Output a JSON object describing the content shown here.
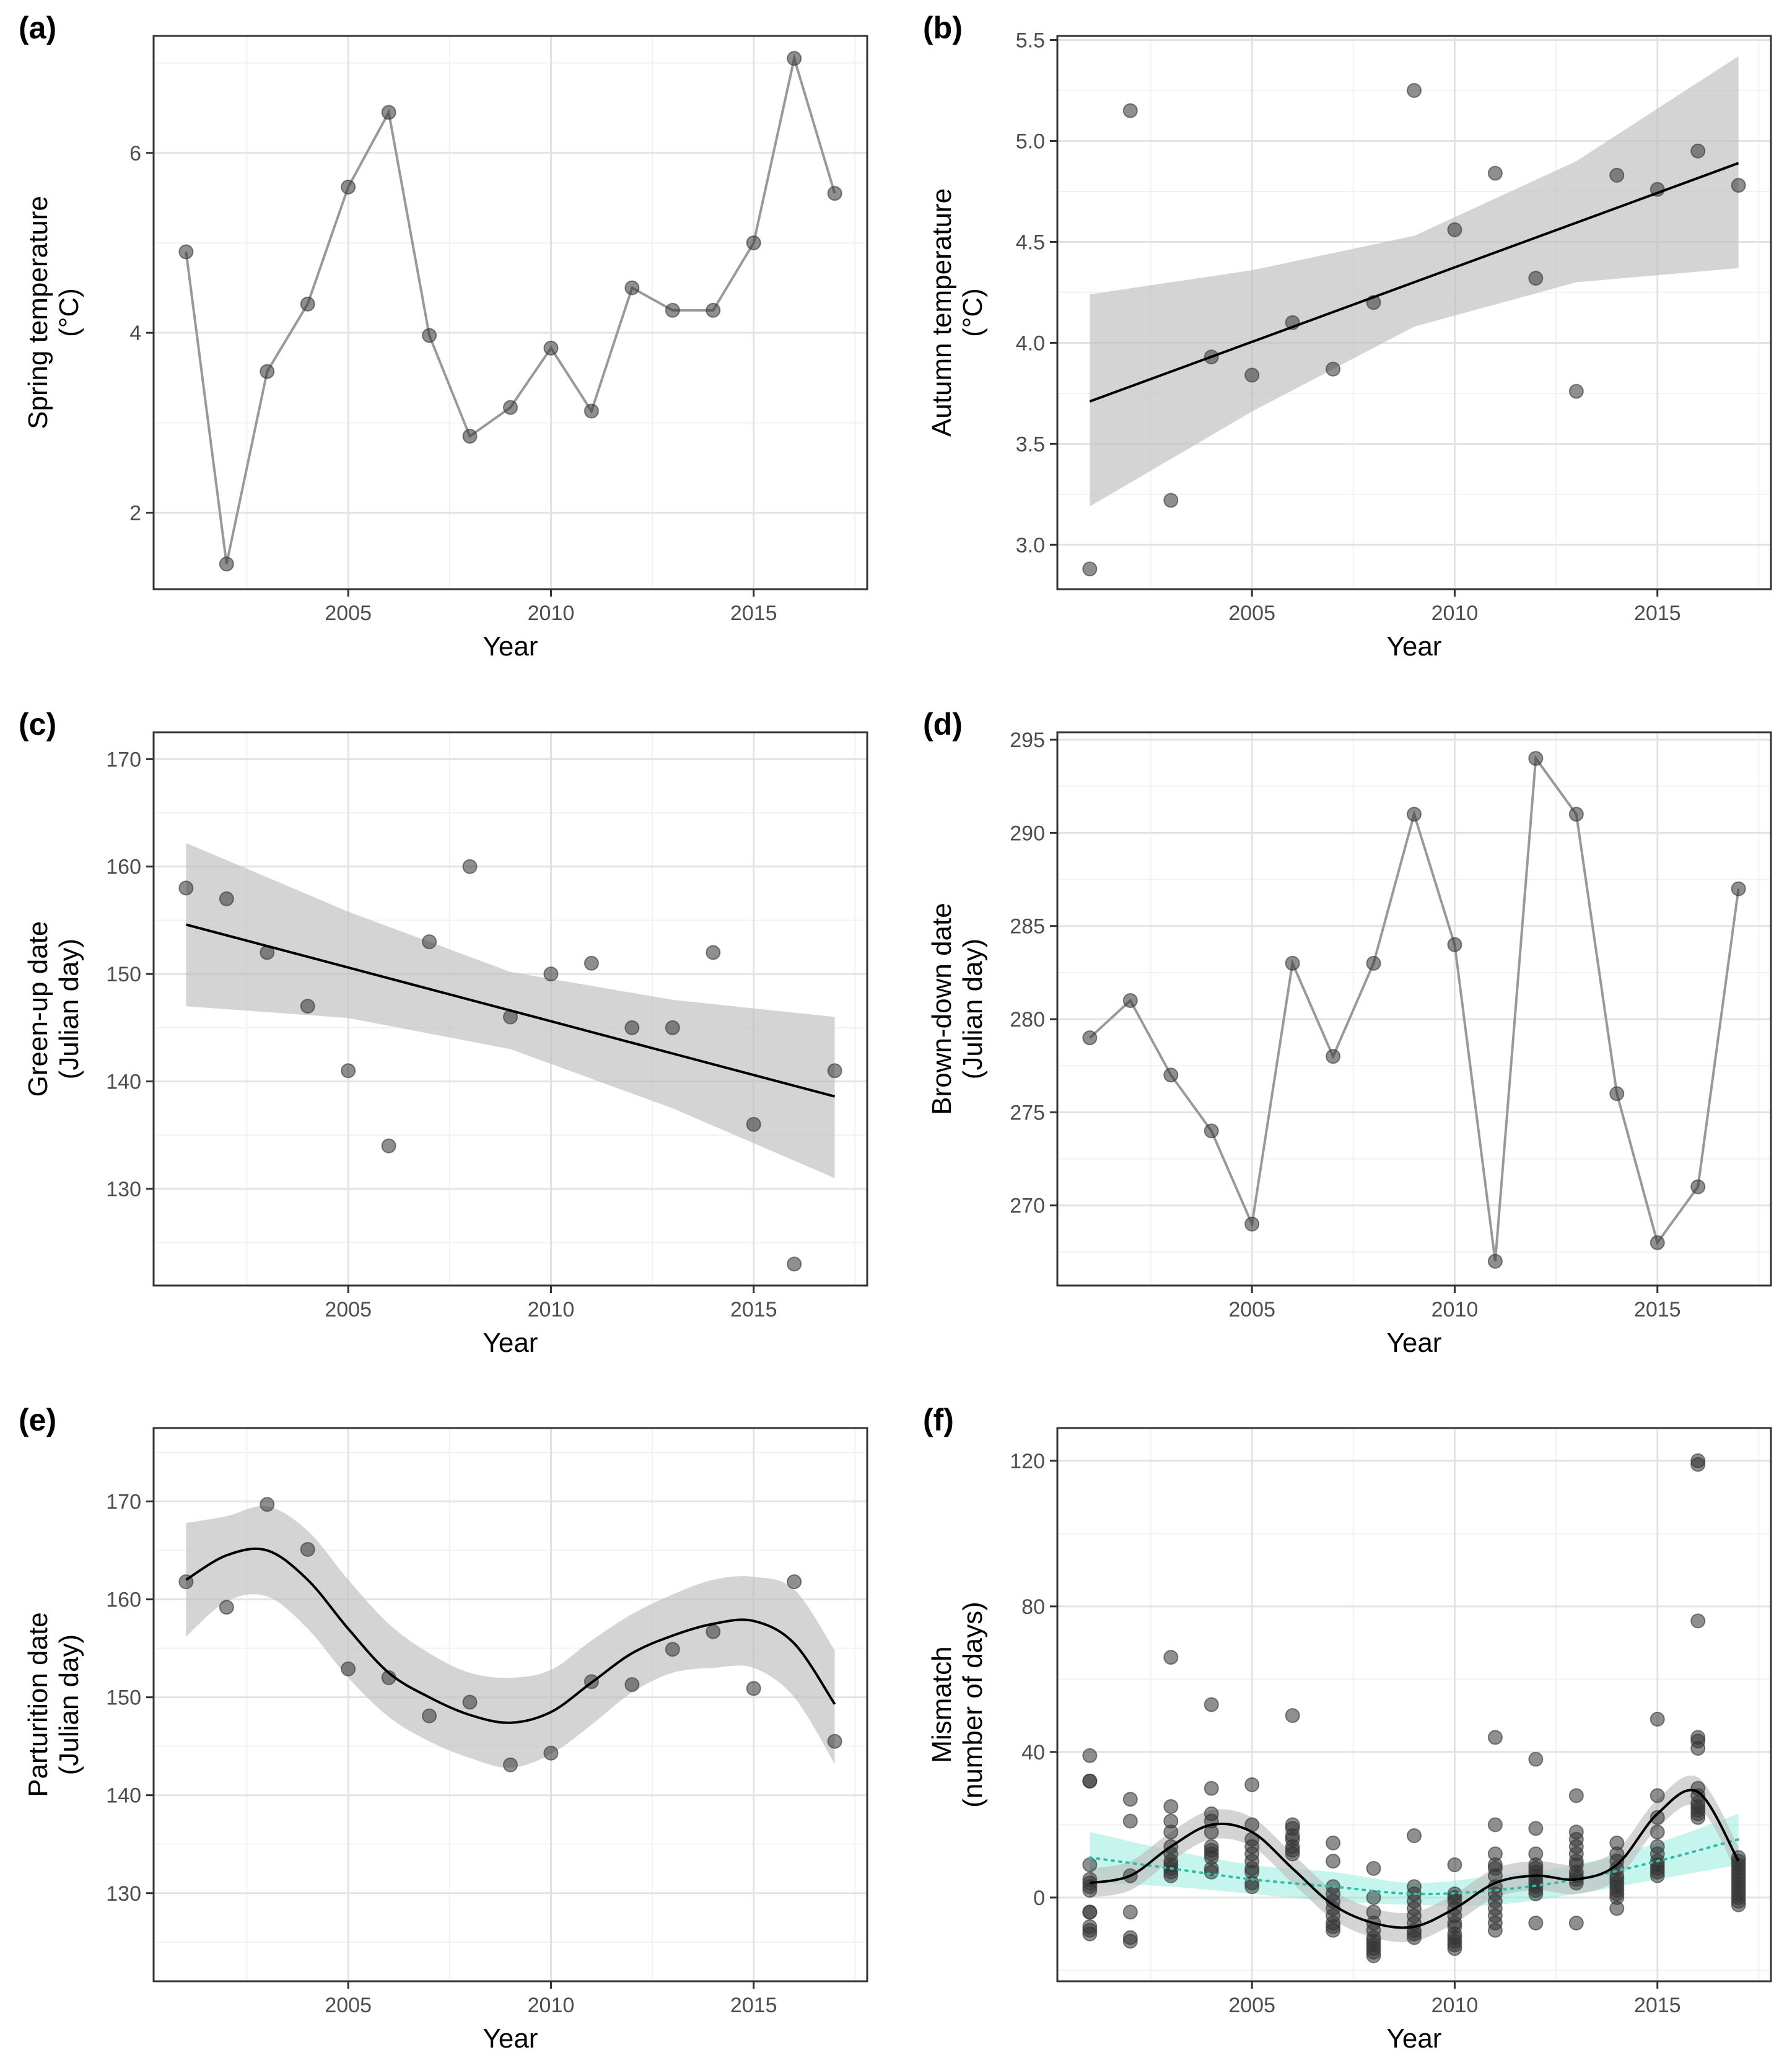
{
  "figure": {
    "panels": [
      "(a)",
      "(b)",
      "(c)",
      "(d)",
      "(e)",
      "(f)"
    ]
  },
  "colors": {
    "point": "#333333",
    "line_grey": "#999999",
    "band_grey": "#bdbdbd",
    "band_teal": "#7fe8d6",
    "teal_line": "#2fbfa9",
    "grid_major": "#e3e3e3",
    "grid_minor": "#f2f2f2",
    "frame": "#333333"
  },
  "chart_data": [
    {
      "panel": "(a)",
      "type": "line",
      "xlabel": "Year",
      "ylabel": [
        "Spring temperature",
        "(°C)"
      ],
      "xlim": [
        2000.2,
        2017.8
      ],
      "ylim": [
        1.15,
        7.3
      ],
      "xticks": [
        2005,
        2010,
        2015
      ],
      "yticks": [
        2,
        4,
        6
      ],
      "x": [
        2001,
        2002,
        2003,
        2004,
        2005,
        2006,
        2007,
        2008,
        2009,
        2010,
        2011,
        2012,
        2013,
        2014,
        2015,
        2016,
        2017
      ],
      "y": [
        4.9,
        1.43,
        3.57,
        4.32,
        5.62,
        6.45,
        3.97,
        2.85,
        3.17,
        3.83,
        3.13,
        4.5,
        4.25,
        4.25,
        5.0,
        7.05,
        5.55
      ],
      "connect": true
    },
    {
      "panel": "(b)",
      "type": "scatter",
      "xlabel": "Year",
      "ylabel": [
        "Autumn temperature",
        "(°C)"
      ],
      "xlim": [
        2000.2,
        2017.8
      ],
      "ylim": [
        2.78,
        5.52
      ],
      "xticks": [
        2005,
        2010,
        2015
      ],
      "yticks": [
        3.0,
        3.5,
        4.0,
        4.5,
        5.0,
        5.5
      ],
      "ytick_labels": [
        "3.0",
        "3.5",
        "4.0",
        "4.5",
        "5.0",
        "5.5"
      ],
      "x": [
        2001,
        2002,
        2003,
        2004,
        2005,
        2006,
        2007,
        2008,
        2009,
        2010,
        2011,
        2012,
        2013,
        2014,
        2015,
        2016,
        2017
      ],
      "y": [
        2.88,
        5.15,
        3.22,
        3.93,
        3.84,
        4.1,
        3.87,
        4.2,
        5.25,
        4.56,
        4.84,
        4.32,
        3.76,
        4.83,
        4.76,
        4.95,
        4.78
      ],
      "fit": {
        "x": [
          2001,
          2005,
          2009,
          2013,
          2017
        ],
        "y": [
          3.71,
          4.005,
          4.3,
          4.595,
          4.89
        ],
        "lower": [
          3.19,
          3.66,
          4.08,
          4.3,
          4.37
        ],
        "upper": [
          4.24,
          4.36,
          4.53,
          4.9,
          5.42
        ]
      }
    },
    {
      "panel": "(c)",
      "type": "scatter",
      "xlabel": "Year",
      "ylabel": [
        "Green-up date",
        "(Julian day)"
      ],
      "xlim": [
        2000.2,
        2017.8
      ],
      "ylim": [
        121,
        172.5
      ],
      "xticks": [
        2005,
        2010,
        2015
      ],
      "yticks": [
        130,
        140,
        150,
        160,
        170
      ],
      "x": [
        2001,
        2002,
        2003,
        2004,
        2005,
        2006,
        2007,
        2008,
        2009,
        2010,
        2011,
        2012,
        2013,
        2014,
        2015,
        2016,
        2017
      ],
      "y": [
        158,
        157,
        152,
        147,
        141,
        134,
        153,
        160,
        146,
        150,
        151,
        145,
        145,
        152,
        136,
        123,
        141
      ],
      "fit": {
        "x": [
          2001,
          2005,
          2009,
          2013,
          2017
        ],
        "y": [
          154.6,
          150.6,
          146.6,
          142.6,
          138.6
        ],
        "lower": [
          147.0,
          145.9,
          143.0,
          137.5,
          131.0
        ],
        "upper": [
          162.2,
          155.8,
          150.2,
          147.6,
          146.0
        ]
      }
    },
    {
      "panel": "(d)",
      "type": "line",
      "xlabel": "Year",
      "ylabel": [
        "Brown-down date",
        "(Julian day)"
      ],
      "xlim": [
        2000.2,
        2017.8
      ],
      "ylim": [
        265.7,
        295.4
      ],
      "xticks": [
        2005,
        2010,
        2015
      ],
      "yticks": [
        270,
        275,
        280,
        285,
        290,
        295
      ],
      "x": [
        2001,
        2002,
        2003,
        2004,
        2005,
        2006,
        2007,
        2008,
        2009,
        2010,
        2011,
        2012,
        2013,
        2014,
        2015,
        2016,
        2017
      ],
      "y": [
        279,
        281,
        277,
        274,
        269,
        283,
        278,
        283,
        291,
        284,
        267,
        294,
        291,
        276,
        268,
        271,
        287
      ],
      "connect": true
    },
    {
      "panel": "(e)",
      "type": "scatter",
      "xlabel": "Year",
      "ylabel": [
        "Parturition date",
        "(Julian day)"
      ],
      "xlim": [
        2000.2,
        2017.8
      ],
      "ylim": [
        121,
        177.5
      ],
      "xticks": [
        2005,
        2010,
        2015
      ],
      "yticks": [
        130,
        140,
        150,
        160,
        170
      ],
      "x": [
        2001,
        2002,
        2003,
        2004,
        2005,
        2006,
        2007,
        2008,
        2009,
        2010,
        2011,
        2012,
        2013,
        2014,
        2015,
        2016,
        2017
      ],
      "y": [
        161.8,
        159.2,
        169.7,
        165.1,
        152.9,
        152.0,
        148.1,
        149.5,
        143.1,
        144.3,
        151.6,
        151.3,
        154.9,
        156.7,
        150.9,
        161.8,
        145.5
      ],
      "fit": {
        "x": [
          2001,
          2002,
          2003,
          2004,
          2005,
          2006,
          2007,
          2008,
          2009,
          2010,
          2011,
          2012,
          2013,
          2014,
          2015,
          2016,
          2017
        ],
        "y": [
          162.0,
          164.5,
          165.0,
          162.0,
          157.0,
          152.5,
          150.0,
          148.2,
          147.4,
          148.5,
          151.5,
          154.5,
          156.3,
          157.5,
          157.8,
          155.5,
          149.3
        ],
        "lower": [
          156.2,
          159.8,
          160.3,
          157.0,
          152.0,
          148.0,
          145.5,
          143.8,
          142.8,
          144.2,
          147.2,
          150.5,
          152.5,
          153.0,
          153.0,
          150.0,
          143.2
        ],
        "upper": [
          167.8,
          168.5,
          169.5,
          167.0,
          162.0,
          157.5,
          154.5,
          152.5,
          152.0,
          152.8,
          155.8,
          158.5,
          160.5,
          162.0,
          162.3,
          161.0,
          154.8
        ]
      }
    },
    {
      "panel": "(f)",
      "type": "scatter",
      "xlabel": "Year",
      "ylabel": [
        "Mismatch",
        "(number of days)"
      ],
      "xlim": [
        2000.2,
        2017.8
      ],
      "ylim": [
        -23,
        129
      ],
      "xticks": [
        2005,
        2010,
        2015
      ],
      "yticks": [
        0,
        40,
        80,
        120
      ],
      "points": [
        [
          2001,
          39
        ],
        [
          2001,
          32
        ],
        [
          2001,
          32
        ],
        [
          2001,
          9
        ],
        [
          2001,
          5
        ],
        [
          2001,
          4
        ],
        [
          2001,
          3
        ],
        [
          2001,
          2
        ],
        [
          2001,
          -4
        ],
        [
          2001,
          -4
        ],
        [
          2001,
          -8
        ],
        [
          2001,
          -9
        ],
        [
          2001,
          -10
        ],
        [
          2002,
          27
        ],
        [
          2002,
          21
        ],
        [
          2002,
          6
        ],
        [
          2002,
          -4
        ],
        [
          2002,
          -11
        ],
        [
          2002,
          -12
        ],
        [
          2003,
          66
        ],
        [
          2003,
          25
        ],
        [
          2003,
          21
        ],
        [
          2003,
          18
        ],
        [
          2003,
          14
        ],
        [
          2003,
          12
        ],
        [
          2003,
          10
        ],
        [
          2003,
          9
        ],
        [
          2003,
          8
        ],
        [
          2003,
          7
        ],
        [
          2003,
          6
        ],
        [
          2004,
          53
        ],
        [
          2004,
          30
        ],
        [
          2004,
          23
        ],
        [
          2004,
          21
        ],
        [
          2004,
          18
        ],
        [
          2004,
          14
        ],
        [
          2004,
          13
        ],
        [
          2004,
          12
        ],
        [
          2004,
          11
        ],
        [
          2004,
          8
        ],
        [
          2004,
          7
        ],
        [
          2005,
          31
        ],
        [
          2005,
          20
        ],
        [
          2005,
          16
        ],
        [
          2005,
          14
        ],
        [
          2005,
          12
        ],
        [
          2005,
          10
        ],
        [
          2005,
          8
        ],
        [
          2005,
          7
        ],
        [
          2005,
          4
        ],
        [
          2005,
          3
        ],
        [
          2006,
          50
        ],
        [
          2006,
          20
        ],
        [
          2006,
          19
        ],
        [
          2006,
          17
        ],
        [
          2006,
          16
        ],
        [
          2006,
          14
        ],
        [
          2006,
          13
        ],
        [
          2006,
          12
        ],
        [
          2007,
          15
        ],
        [
          2007,
          10
        ],
        [
          2007,
          3
        ],
        [
          2007,
          1
        ],
        [
          2007,
          -1
        ],
        [
          2007,
          -3
        ],
        [
          2007,
          -5
        ],
        [
          2007,
          -7
        ],
        [
          2007,
          -8
        ],
        [
          2007,
          -9
        ],
        [
          2008,
          8
        ],
        [
          2008,
          0
        ],
        [
          2008,
          -4
        ],
        [
          2008,
          -7
        ],
        [
          2008,
          -9
        ],
        [
          2008,
          -11
        ],
        [
          2008,
          -12
        ],
        [
          2008,
          -13
        ],
        [
          2008,
          -14
        ],
        [
          2008,
          -15
        ],
        [
          2008,
          -16
        ],
        [
          2009,
          17
        ],
        [
          2009,
          3
        ],
        [
          2009,
          1
        ],
        [
          2009,
          -1
        ],
        [
          2009,
          -3
        ],
        [
          2009,
          -5
        ],
        [
          2009,
          -7
        ],
        [
          2009,
          -9
        ],
        [
          2009,
          -10
        ],
        [
          2009,
          -11
        ],
        [
          2010,
          9
        ],
        [
          2010,
          1
        ],
        [
          2010,
          0
        ],
        [
          2010,
          -1
        ],
        [
          2010,
          -3
        ],
        [
          2010,
          -5
        ],
        [
          2010,
          -7
        ],
        [
          2010,
          -8
        ],
        [
          2010,
          -10
        ],
        [
          2010,
          -11
        ],
        [
          2010,
          -12
        ],
        [
          2010,
          -13
        ],
        [
          2010,
          -14
        ],
        [
          2011,
          44
        ],
        [
          2011,
          20
        ],
        [
          2011,
          12
        ],
        [
          2011,
          9
        ],
        [
          2011,
          8
        ],
        [
          2011,
          6
        ],
        [
          2011,
          3
        ],
        [
          2011,
          1
        ],
        [
          2011,
          -1
        ],
        [
          2011,
          -3
        ],
        [
          2011,
          -5
        ],
        [
          2011,
          -7
        ],
        [
          2011,
          -9
        ],
        [
          2012,
          38
        ],
        [
          2012,
          19
        ],
        [
          2012,
          12
        ],
        [
          2012,
          9
        ],
        [
          2012,
          8
        ],
        [
          2012,
          7
        ],
        [
          2012,
          6
        ],
        [
          2012,
          5
        ],
        [
          2012,
          4
        ],
        [
          2012,
          3
        ],
        [
          2012,
          2
        ],
        [
          2012,
          1
        ],
        [
          2012,
          -7
        ],
        [
          2013,
          28
        ],
        [
          2013,
          18
        ],
        [
          2013,
          16
        ],
        [
          2013,
          14
        ],
        [
          2013,
          12
        ],
        [
          2013,
          10
        ],
        [
          2013,
          9
        ],
        [
          2013,
          7
        ],
        [
          2013,
          6
        ],
        [
          2013,
          5
        ],
        [
          2013,
          4
        ],
        [
          2013,
          -7
        ],
        [
          2014,
          15
        ],
        [
          2014,
          12
        ],
        [
          2014,
          10
        ],
        [
          2014,
          8
        ],
        [
          2014,
          6
        ],
        [
          2014,
          5
        ],
        [
          2014,
          4
        ],
        [
          2014,
          3
        ],
        [
          2014,
          2
        ],
        [
          2014,
          1
        ],
        [
          2014,
          0
        ],
        [
          2014,
          -3
        ],
        [
          2015,
          49
        ],
        [
          2015,
          28
        ],
        [
          2015,
          22
        ],
        [
          2015,
          18
        ],
        [
          2015,
          14
        ],
        [
          2015,
          12
        ],
        [
          2015,
          10
        ],
        [
          2015,
          9
        ],
        [
          2015,
          8
        ],
        [
          2015,
          7
        ],
        [
          2015,
          6
        ],
        [
          2016,
          120
        ],
        [
          2016,
          119
        ],
        [
          2016,
          76
        ],
        [
          2016,
          44
        ],
        [
          2016,
          43
        ],
        [
          2016,
          41
        ],
        [
          2016,
          30
        ],
        [
          2016,
          28
        ],
        [
          2016,
          26
        ],
        [
          2016,
          25
        ],
        [
          2016,
          24
        ],
        [
          2016,
          23
        ],
        [
          2016,
          22
        ],
        [
          2017,
          11
        ],
        [
          2017,
          10
        ],
        [
          2017,
          9
        ],
        [
          2017,
          8
        ],
        [
          2017,
          7
        ],
        [
          2017,
          6
        ],
        [
          2017,
          5
        ],
        [
          2017,
          4
        ],
        [
          2017,
          3
        ],
        [
          2017,
          2
        ],
        [
          2017,
          1
        ],
        [
          2017,
          0
        ],
        [
          2017,
          -1
        ],
        [
          2017,
          -2
        ]
      ],
      "smooth_fit": {
        "x": [
          2001,
          2002,
          2003,
          2004,
          2005,
          2006,
          2007,
          2008,
          2009,
          2010,
          2011,
          2012,
          2013,
          2014,
          2015,
          2016,
          2017
        ],
        "y": [
          4,
          6,
          14,
          20,
          18,
          8,
          -2,
          -7,
          -8,
          -3,
          4,
          6,
          5,
          9,
          23,
          29,
          10
        ],
        "lower": [
          0,
          2,
          10,
          16,
          14,
          4,
          -6,
          -11,
          -12,
          -7,
          0,
          2,
          1,
          5,
          19,
          25,
          6
        ],
        "upper": [
          8,
          10,
          18,
          24,
          22,
          12,
          2,
          -3,
          -4,
          1,
          8,
          10,
          9,
          13,
          27,
          33,
          14
        ]
      },
      "teal_fit": {
        "x": [
          2001,
          2003,
          2005,
          2007,
          2009,
          2011,
          2013,
          2015,
          2017
        ],
        "y": [
          11,
          8,
          5,
          3,
          1,
          2,
          5,
          10,
          16
        ],
        "lower": [
          4,
          3,
          1,
          -1,
          -2,
          -2,
          1,
          5,
          9
        ],
        "upper": [
          18,
          13,
          9,
          7,
          4,
          6,
          9,
          15,
          23
        ]
      }
    }
  ]
}
